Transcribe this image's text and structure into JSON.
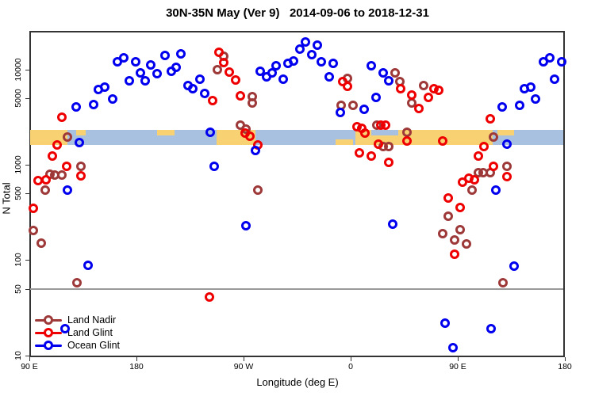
{
  "title": "30N-35N May (Ver 9)   2014-09-06 to 2018-12-31",
  "axes": {
    "y_label": "N Total",
    "x_label": "Longitude (deg E)",
    "y_scale": "log",
    "y_ticks": [
      {
        "label": "10",
        "n": 10
      },
      {
        "label": "50",
        "n": 50
      },
      {
        "label": "100",
        "n": 100
      },
      {
        "label": "500",
        "n": 500
      },
      {
        "label": "1000",
        "n": 1000
      },
      {
        "label": "5000",
        "n": 5000
      },
      {
        "label": "10000",
        "n": 10000
      }
    ],
    "x_ticks": [
      {
        "label": "90 E",
        "lon": 90
      },
      {
        "label": "180",
        "lon": 180
      },
      {
        "label": "90 W",
        "lon": 270
      },
      {
        "label": "0",
        "lon": 360
      },
      {
        "label": "90 E",
        "lon": 450
      },
      {
        "label": "180",
        "lon": 540
      }
    ]
  },
  "legend": {
    "items": [
      {
        "label": "Land Nadir",
        "color": "#9e3939"
      },
      {
        "label": "Land Glint",
        "color": "#ee0000"
      },
      {
        "label": "Ocean Glint",
        "color": "#0000ee"
      }
    ]
  },
  "chart_data": {
    "type": "scatter",
    "y_scale": "log",
    "x_axis_note": "longitude axis spans 450 deg starting at 90E going east (90E,180,90W,0,90E,180); lon values below are 90..540 in that span",
    "reference_line": {
      "n": 50,
      "color": "#999999"
    },
    "land_ocean_band": {
      "n_center": 2000,
      "colors": {
        "land": "#f8d172",
        "ocean": "#a9c1e0"
      },
      "segments": [
        {
          "from": 90,
          "to": 122,
          "type": "land"
        },
        {
          "from": 122,
          "to": 247,
          "type": "ocean"
        },
        {
          "from": 247,
          "to": 280,
          "type": "land"
        },
        {
          "from": 280,
          "to": 364,
          "type": "ocean"
        },
        {
          "from": 364,
          "to": 479,
          "type": "land"
        },
        {
          "from": 479,
          "to": 540,
          "type": "ocean"
        }
      ],
      "patches": [
        {
          "from": 377,
          "to": 400,
          "type": "ocean",
          "part": "top"
        },
        {
          "from": 347,
          "to": 362,
          "type": "land",
          "part": "bottom"
        },
        {
          "from": 129,
          "to": 137,
          "type": "land",
          "part": "top"
        },
        {
          "from": 197,
          "to": 212,
          "type": "land",
          "part": "top"
        },
        {
          "from": 483,
          "to": 497,
          "type": "land",
          "part": "top"
        }
      ]
    },
    "series": [
      {
        "name": "Land Nadir",
        "color": "#9e3939",
        "marker": "open-circle",
        "points": [
          [
            122,
            1960
          ],
          [
            107,
            790
          ],
          [
            111,
            785
          ],
          [
            117,
            780
          ],
          [
            133,
            960
          ],
          [
            103,
            545
          ],
          [
            93,
            205
          ],
          [
            100,
            150
          ],
          [
            130,
            58
          ],
          [
            253,
            13800
          ],
          [
            248,
            9950
          ],
          [
            277,
            5180
          ],
          [
            277,
            4460
          ],
          [
            267,
            2610
          ],
          [
            272,
            2360
          ],
          [
            282,
            545
          ],
          [
            357,
            8070
          ],
          [
            397,
            9230
          ],
          [
            401,
            7480
          ],
          [
            421,
            6790
          ],
          [
            411,
            4460
          ],
          [
            352,
            4210
          ],
          [
            362,
            4170
          ],
          [
            382,
            2610
          ],
          [
            407,
            2190
          ],
          [
            387,
            1560
          ],
          [
            392,
            1560
          ],
          [
            480,
            1960
          ],
          [
            467,
            830
          ],
          [
            471,
            830
          ],
          [
            477,
            830
          ],
          [
            491,
            965
          ],
          [
            462,
            545
          ],
          [
            442,
            290
          ],
          [
            452,
            208
          ],
          [
            437,
            190
          ],
          [
            447,
            163
          ],
          [
            457,
            148
          ],
          [
            488,
            58
          ]
        ]
      },
      {
        "name": "Land Glint",
        "color": "#ee0000",
        "marker": "open-circle",
        "points": [
          [
            117,
            3160
          ],
          [
            113,
            1620
          ],
          [
            109,
            1240
          ],
          [
            121,
            965
          ],
          [
            133,
            765
          ],
          [
            97,
            680
          ],
          [
            104,
            690
          ],
          [
            93,
            350
          ],
          [
            241,
            41
          ],
          [
            249,
            15200
          ],
          [
            253,
            11800
          ],
          [
            258,
            9400
          ],
          [
            263,
            7760
          ],
          [
            267,
            5300
          ],
          [
            244,
            4720
          ],
          [
            271,
            2150
          ],
          [
            275,
            2000
          ],
          [
            282,
            1620
          ],
          [
            353,
            7480
          ],
          [
            357,
            6670
          ],
          [
            402,
            6300
          ],
          [
            411,
            5400
          ],
          [
            417,
            3900
          ],
          [
            430,
            6300
          ],
          [
            434,
            6050
          ],
          [
            425,
            5090
          ],
          [
            365,
            2510
          ],
          [
            369,
            2420
          ],
          [
            372,
            2150
          ],
          [
            385,
            2610
          ],
          [
            389,
            2610
          ],
          [
            383,
            1650
          ],
          [
            407,
            1780
          ],
          [
            367,
            1340
          ],
          [
            377,
            1240
          ],
          [
            392,
            1060
          ],
          [
            437,
            1780
          ],
          [
            477,
            3040
          ],
          [
            472,
            1560
          ],
          [
            467,
            1240
          ],
          [
            480,
            965
          ],
          [
            459,
            725
          ],
          [
            464,
            697
          ],
          [
            454,
            658
          ],
          [
            491,
            752
          ],
          [
            442,
            449
          ],
          [
            452,
            357
          ],
          [
            447,
            115
          ]
        ]
      },
      {
        "name": "Ocean Glint",
        "color": "#0000ee",
        "marker": "open-circle",
        "points": [
          [
            164,
            12100
          ],
          [
            169,
            13300
          ],
          [
            179,
            12100
          ],
          [
            192,
            11200
          ],
          [
            204,
            14100
          ],
          [
            183,
            9230
          ],
          [
            197,
            9060
          ],
          [
            174,
            7620
          ],
          [
            187,
            7620
          ],
          [
            148,
            6170
          ],
          [
            153,
            6530
          ],
          [
            160,
            4910
          ],
          [
            144,
            4290
          ],
          [
            129,
            4050
          ],
          [
            132,
            1710
          ],
          [
            122,
            545
          ],
          [
            217,
            14600
          ],
          [
            209,
            9590
          ],
          [
            213,
            10600
          ],
          [
            223,
            6790
          ],
          [
            227,
            6300
          ],
          [
            233,
            7930
          ],
          [
            237,
            5610
          ],
          [
            245,
            965
          ],
          [
            242,
            2190
          ],
          [
            272,
            230
          ],
          [
            284,
            9590
          ],
          [
            289,
            8390
          ],
          [
            294,
            9230
          ],
          [
            297,
            11000
          ],
          [
            303,
            7930
          ],
          [
            307,
            11600
          ],
          [
            312,
            12300
          ],
          [
            317,
            16400
          ],
          [
            322,
            19500
          ],
          [
            327,
            14300
          ],
          [
            332,
            18000
          ],
          [
            335,
            12100
          ],
          [
            342,
            8390
          ],
          [
            345,
            11600
          ],
          [
            351,
            3540
          ],
          [
            371,
            3830
          ],
          [
            377,
            11000
          ],
          [
            387,
            9230
          ],
          [
            392,
            7620
          ],
          [
            381,
            5090
          ],
          [
            280,
            1420
          ],
          [
            395,
            238
          ],
          [
            522,
            12100
          ],
          [
            527,
            13300
          ],
          [
            537,
            12100
          ],
          [
            531,
            7930
          ],
          [
            506,
            6300
          ],
          [
            511,
            6530
          ],
          [
            515,
            4910
          ],
          [
            502,
            4210
          ],
          [
            487,
            4050
          ],
          [
            491,
            1650
          ],
          [
            482,
            545
          ],
          [
            497,
            86
          ],
          [
            439,
            22
          ],
          [
            478,
            19
          ],
          [
            446,
            12
          ],
          [
            120,
            19
          ],
          [
            139,
            88
          ]
        ]
      }
    ]
  }
}
